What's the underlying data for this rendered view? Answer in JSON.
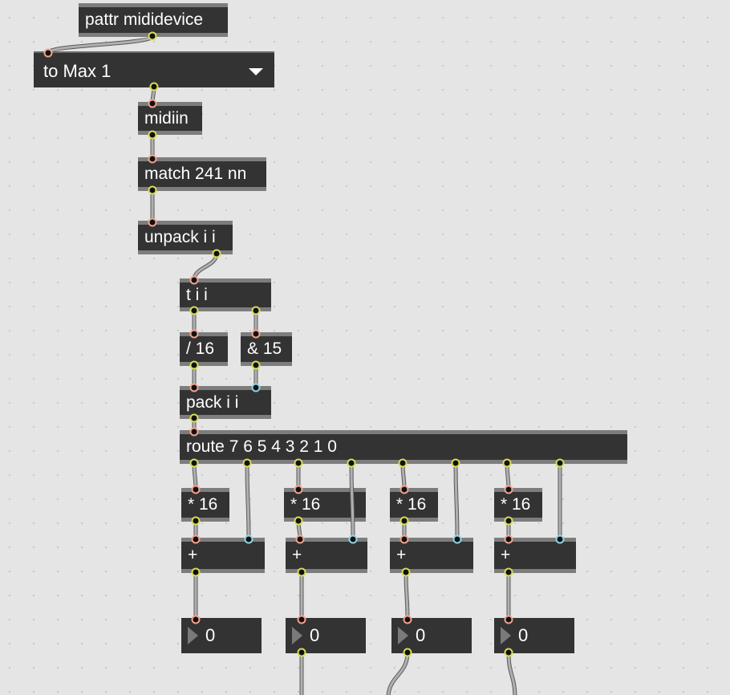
{
  "patcher": {
    "pattr": "pattr mididevice",
    "device_menu": {
      "selected": "to Max 1",
      "icon": "chevron-down-icon"
    },
    "midiin": "midiin",
    "match": "match 241 nn",
    "unpack": "unpack i i",
    "trigger": "t i i",
    "divide": "/ 16",
    "bitand": "& 15",
    "pack": "pack i i",
    "route": "route 7 6 5 4 3 2 1 0",
    "multiply": [
      "* 16",
      "* 16",
      "* 16",
      "* 16"
    ],
    "add": [
      "+",
      "+",
      "+",
      "+"
    ],
    "number_boxes": [
      "0",
      "0",
      "0",
      "0"
    ]
  },
  "colors": {
    "background": "#e5e5e5",
    "object": "#333333",
    "hot_inlet": "#f2a38f",
    "cold_inlet": "#8fd6e6",
    "outlet": "#d8dc52",
    "cable": "#9a9a9a"
  }
}
